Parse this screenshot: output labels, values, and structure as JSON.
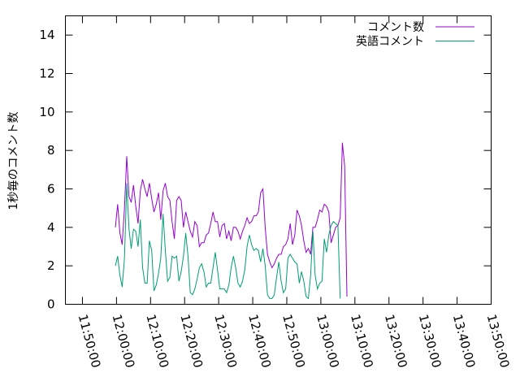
{
  "chart_data": {
    "type": "line",
    "title": "",
    "xlabel": "",
    "ylabel": "1秒毎のコメント数",
    "xlim": [
      "11:45:00",
      "13:50:00"
    ],
    "ylim": [
      0,
      15
    ],
    "x_ticks": [
      "11:50:00",
      "12:00:00",
      "12:10:00",
      "12:20:00",
      "12:30:00",
      "12:40:00",
      "12:50:00",
      "13:00:00",
      "13:10:00",
      "13:20:00",
      "13:30:00",
      "13:40:00",
      "13:50:00"
    ],
    "y_ticks": [
      "0",
      "2",
      "4",
      "6",
      "8",
      "10",
      "12",
      "14"
    ],
    "grid": false,
    "legend_position": "top-right",
    "series": [
      {
        "name": "コメント数",
        "color": "#9400D3",
        "points": [
          [
            "11:59:40",
            4.0
          ],
          [
            "12:00:20",
            5.2
          ],
          [
            "12:01:00",
            3.7
          ],
          [
            "12:01:40",
            3.1
          ],
          [
            "12:02:20",
            5.0
          ],
          [
            "12:03:00",
            7.7
          ],
          [
            "12:03:40",
            5.6
          ],
          [
            "12:04:20",
            5.3
          ],
          [
            "12:05:00",
            6.2
          ],
          [
            "12:05:40",
            5.1
          ],
          [
            "12:06:20",
            4.2
          ],
          [
            "12:07:00",
            5.9
          ],
          [
            "12:07:40",
            6.5
          ],
          [
            "12:08:20",
            6.0
          ],
          [
            "12:09:00",
            5.6
          ],
          [
            "12:09:40",
            6.3
          ],
          [
            "12:10:20",
            5.5
          ],
          [
            "12:11:00",
            4.8
          ],
          [
            "12:11:40",
            5.2
          ],
          [
            "12:12:20",
            5.8
          ],
          [
            "12:13:00",
            4.4
          ],
          [
            "12:13:40",
            5.9
          ],
          [
            "12:14:20",
            6.3
          ],
          [
            "12:15:00",
            5.6
          ],
          [
            "12:15:40",
            5.4
          ],
          [
            "12:16:20",
            4.3
          ],
          [
            "12:17:00",
            3.4
          ],
          [
            "12:17:40",
            5.4
          ],
          [
            "12:18:20",
            5.6
          ],
          [
            "12:19:00",
            5.4
          ],
          [
            "12:19:40",
            4.0
          ],
          [
            "12:20:20",
            4.8
          ],
          [
            "12:21:00",
            4.3
          ],
          [
            "12:21:40",
            3.8
          ],
          [
            "12:22:20",
            3.5
          ],
          [
            "12:23:00",
            4.3
          ],
          [
            "12:23:40",
            4.1
          ],
          [
            "12:24:20",
            3.0
          ],
          [
            "12:25:00",
            3.2
          ],
          [
            "12:25:40",
            3.2
          ],
          [
            "12:26:20",
            3.6
          ],
          [
            "12:27:00",
            3.7
          ],
          [
            "12:27:40",
            4.2
          ],
          [
            "12:28:20",
            4.8
          ],
          [
            "12:29:00",
            4.3
          ],
          [
            "12:29:40",
            4.3
          ],
          [
            "12:30:20",
            3.5
          ],
          [
            "12:31:00",
            4.1
          ],
          [
            "12:31:40",
            4.2
          ],
          [
            "12:32:20",
            3.4
          ],
          [
            "12:33:00",
            3.8
          ],
          [
            "12:33:40",
            3.3
          ],
          [
            "12:34:20",
            4.0
          ],
          [
            "12:35:00",
            4.0
          ],
          [
            "12:35:40",
            3.8
          ],
          [
            "12:36:20",
            3.4
          ],
          [
            "12:37:00",
            3.8
          ],
          [
            "12:37:40",
            4.1
          ],
          [
            "12:38:20",
            4.5
          ],
          [
            "12:39:00",
            4.2
          ],
          [
            "12:39:40",
            4.3
          ],
          [
            "12:40:20",
            4.6
          ],
          [
            "12:41:00",
            4.6
          ],
          [
            "12:41:40",
            4.8
          ],
          [
            "12:42:20",
            5.8
          ],
          [
            "12:43:00",
            6.0
          ],
          [
            "12:43:40",
            4.0
          ],
          [
            "12:44:20",
            2.6
          ],
          [
            "12:45:00",
            2.2
          ],
          [
            "12:45:40",
            1.9
          ],
          [
            "12:46:20",
            2.1
          ],
          [
            "12:47:00",
            2.4
          ],
          [
            "12:47:40",
            2.6
          ],
          [
            "12:48:20",
            2.6
          ],
          [
            "12:49:00",
            3.0
          ],
          [
            "12:49:40",
            3.1
          ],
          [
            "12:50:20",
            3.4
          ],
          [
            "12:51:00",
            4.2
          ],
          [
            "12:51:40",
            3.1
          ],
          [
            "12:52:20",
            3.6
          ],
          [
            "12:53:00",
            4.9
          ],
          [
            "12:53:40",
            4.6
          ],
          [
            "12:54:20",
            4.1
          ],
          [
            "12:55:00",
            3.3
          ],
          [
            "12:55:40",
            2.7
          ],
          [
            "12:56:20",
            2.9
          ],
          [
            "12:57:00",
            2.6
          ],
          [
            "12:57:40",
            4.0
          ],
          [
            "12:58:20",
            4.0
          ],
          [
            "12:59:00",
            4.4
          ],
          [
            "12:59:40",
            4.9
          ],
          [
            "13:00:20",
            4.8
          ],
          [
            "13:01:00",
            5.2
          ],
          [
            "13:01:40",
            5.1
          ],
          [
            "13:02:20",
            4.8
          ],
          [
            "13:03:00",
            3.2
          ],
          [
            "13:03:40",
            3.6
          ],
          [
            "13:04:20",
            4.0
          ],
          [
            "13:05:00",
            4.1
          ],
          [
            "13:05:40",
            4.5
          ],
          [
            "13:06:20",
            8.4
          ],
          [
            "13:07:00",
            7.2
          ],
          [
            "13:07:40",
            0.4
          ]
        ]
      },
      {
        "name": "英語コメント",
        "color": "#009E73",
        "points": [
          [
            "11:59:40",
            2.0
          ],
          [
            "12:00:20",
            2.5
          ],
          [
            "12:01:00",
            1.5
          ],
          [
            "12:01:40",
            0.9
          ],
          [
            "12:02:20",
            2.4
          ],
          [
            "12:03:00",
            6.3
          ],
          [
            "12:03:40",
            3.9
          ],
          [
            "12:04:20",
            2.9
          ],
          [
            "12:05:00",
            3.9
          ],
          [
            "12:05:40",
            3.8
          ],
          [
            "12:06:20",
            3.0
          ],
          [
            "12:07:00",
            4.4
          ],
          [
            "12:07:40",
            1.9
          ],
          [
            "12:08:20",
            1.1
          ],
          [
            "12:09:00",
            1.1
          ],
          [
            "12:09:40",
            3.3
          ],
          [
            "12:10:20",
            2.8
          ],
          [
            "12:11:00",
            0.7
          ],
          [
            "12:11:40",
            1.0
          ],
          [
            "12:12:20",
            1.6
          ],
          [
            "12:13:00",
            2.4
          ],
          [
            "12:13:40",
            4.7
          ],
          [
            "12:14:20",
            2.8
          ],
          [
            "12:15:00",
            1.2
          ],
          [
            "12:15:40",
            1.4
          ],
          [
            "12:16:20",
            2.5
          ],
          [
            "12:17:00",
            2.4
          ],
          [
            "12:17:40",
            2.5
          ],
          [
            "12:18:20",
            1.2
          ],
          [
            "12:19:00",
            1.7
          ],
          [
            "12:19:40",
            2.5
          ],
          [
            "12:20:20",
            3.7
          ],
          [
            "12:21:00",
            2.5
          ],
          [
            "12:21:40",
            0.6
          ],
          [
            "12:22:20",
            0.5
          ],
          [
            "12:23:00",
            0.8
          ],
          [
            "12:23:40",
            1.3
          ],
          [
            "12:24:20",
            1.9
          ],
          [
            "12:25:00",
            2.1
          ],
          [
            "12:25:40",
            1.7
          ],
          [
            "12:26:20",
            0.9
          ],
          [
            "12:27:00",
            1.1
          ],
          [
            "12:27:40",
            1.1
          ],
          [
            "12:28:20",
            1.9
          ],
          [
            "12:29:00",
            2.7
          ],
          [
            "12:29:40",
            1.8
          ],
          [
            "12:30:20",
            0.8
          ],
          [
            "12:31:00",
            0.8
          ],
          [
            "12:31:40",
            0.8
          ],
          [
            "12:32:20",
            0.6
          ],
          [
            "12:33:00",
            1.0
          ],
          [
            "12:33:40",
            1.9
          ],
          [
            "12:34:20",
            2.5
          ],
          [
            "12:35:00",
            1.9
          ],
          [
            "12:35:40",
            1.1
          ],
          [
            "12:36:20",
            0.9
          ],
          [
            "12:37:00",
            1.2
          ],
          [
            "12:37:40",
            1.8
          ],
          [
            "12:38:20",
            3.0
          ],
          [
            "12:39:00",
            3.6
          ],
          [
            "12:39:40",
            3.1
          ],
          [
            "12:40:20",
            2.8
          ],
          [
            "12:41:00",
            2.9
          ],
          [
            "12:41:40",
            2.8
          ],
          [
            "12:42:20",
            2.2
          ],
          [
            "12:43:00",
            2.9
          ],
          [
            "12:43:40",
            2.0
          ],
          [
            "12:44:20",
            0.5
          ],
          [
            "12:45:00",
            0.3
          ],
          [
            "12:45:40",
            0.3
          ],
          [
            "12:46:20",
            0.5
          ],
          [
            "12:47:00",
            1.4
          ],
          [
            "12:47:40",
            2.2
          ],
          [
            "12:48:20",
            1.2
          ],
          [
            "12:49:00",
            0.6
          ],
          [
            "12:49:40",
            0.8
          ],
          [
            "12:50:20",
            2.4
          ],
          [
            "12:51:00",
            2.6
          ],
          [
            "12:51:40",
            2.4
          ],
          [
            "12:52:20",
            2.2
          ],
          [
            "12:53:00",
            2.1
          ],
          [
            "12:53:40",
            1.1
          ],
          [
            "12:54:20",
            1.7
          ],
          [
            "12:55:00",
            1.2
          ],
          [
            "12:55:40",
            0.4
          ],
          [
            "12:56:20",
            0.3
          ],
          [
            "12:57:00",
            1.5
          ],
          [
            "12:57:40",
            3.8
          ],
          [
            "12:58:20",
            1.5
          ],
          [
            "12:59:00",
            0.8
          ],
          [
            "12:59:40",
            1.1
          ],
          [
            "13:00:20",
            1.2
          ],
          [
            "13:01:00",
            3.4
          ],
          [
            "13:01:40",
            2.7
          ],
          [
            "13:02:20",
            3.6
          ],
          [
            "13:03:00",
            4.1
          ],
          [
            "13:03:40",
            4.3
          ],
          [
            "13:04:20",
            4.2
          ],
          [
            "13:05:00",
            4.1
          ],
          [
            "13:05:40",
            0.3
          ]
        ]
      }
    ]
  }
}
